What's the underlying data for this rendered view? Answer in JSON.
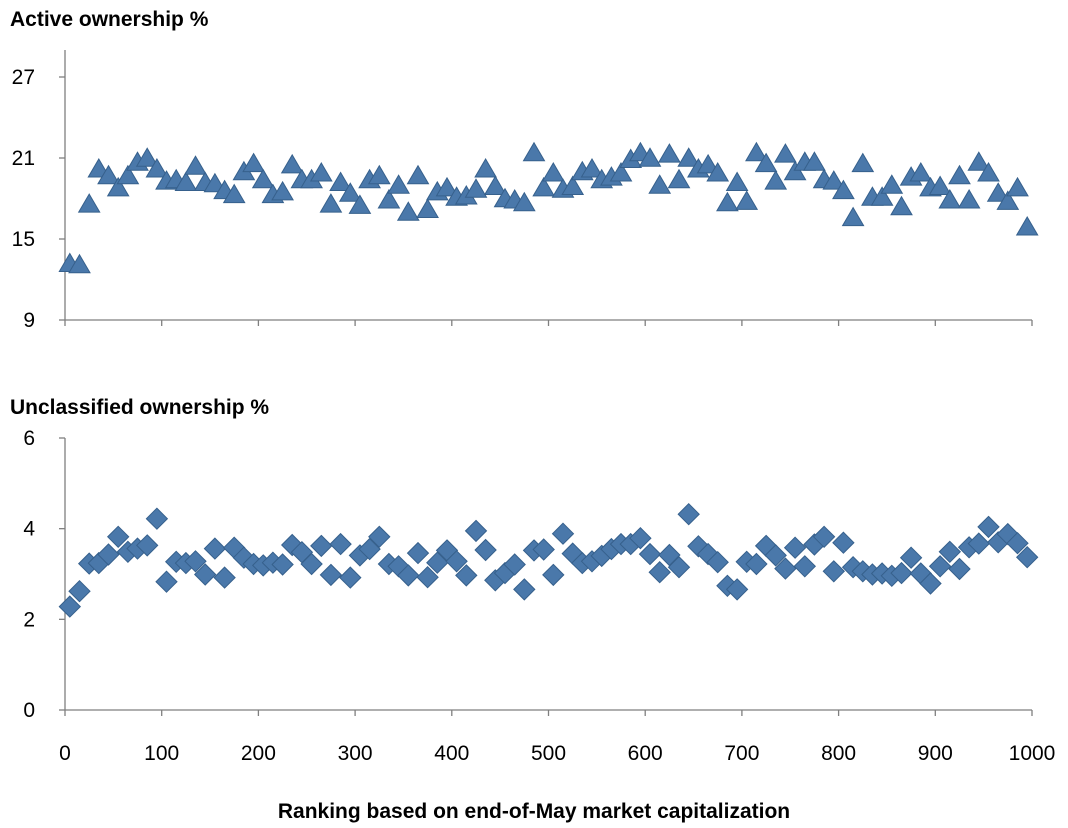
{
  "chart_data": [
    {
      "type": "scatter",
      "title": "Active ownership %",
      "marker": "triangle",
      "color": "#4a78aa",
      "ylim": [
        9,
        29
      ],
      "yticks": [
        "9",
        "15",
        "21",
        "27"
      ],
      "xlim": [
        0,
        1000
      ],
      "series": [
        {
          "x": [
            5,
            15,
            25,
            35,
            45,
            55,
            65,
            75,
            85,
            95,
            105,
            115,
            125,
            135,
            145,
            155,
            165,
            175,
            185,
            195,
            205,
            215,
            225,
            235,
            245,
            255,
            265,
            275,
            285,
            295,
            305,
            315,
            325,
            335,
            345,
            355,
            365,
            375,
            385,
            395,
            405,
            415,
            425,
            435,
            445,
            455,
            465,
            475,
            485,
            495,
            505,
            515,
            525,
            535,
            545,
            555,
            565,
            575,
            585,
            595,
            605,
            615,
            625,
            635,
            645,
            655,
            665,
            675,
            685,
            695,
            705,
            715,
            725,
            735,
            745,
            755,
            765,
            775,
            785,
            795,
            805,
            815,
            825,
            835,
            845,
            855,
            865,
            875,
            885,
            895,
            905,
            915,
            925,
            935,
            945,
            955,
            965,
            975,
            985,
            995
          ],
          "values": [
            13.1,
            13.0,
            17.5,
            20.1,
            19.6,
            18.7,
            19.6,
            20.6,
            20.9,
            20.1,
            19.2,
            19.3,
            19.1,
            20.3,
            19.1,
            19.0,
            18.5,
            18.2,
            19.9,
            20.5,
            19.3,
            18.2,
            18.4,
            20.4,
            19.3,
            19.3,
            19.8,
            17.5,
            19.1,
            18.3,
            17.4,
            19.3,
            19.6,
            17.8,
            18.9,
            16.9,
            19.6,
            17.1,
            18.4,
            18.7,
            18.0,
            18.1,
            18.6,
            20.1,
            18.8,
            17.9,
            17.8,
            17.6,
            21.3,
            18.7,
            19.8,
            18.6,
            18.8,
            19.9,
            20.1,
            19.3,
            19.5,
            19.8,
            20.8,
            21.3,
            20.9,
            18.9,
            21.2,
            19.3,
            20.9,
            20.1,
            20.4,
            19.8,
            17.6,
            19.1,
            17.7,
            21.3,
            20.5,
            19.2,
            21.2,
            19.9,
            20.6,
            20.6,
            19.3,
            19.2,
            18.5,
            16.5,
            20.5,
            18.0,
            18.0,
            18.9,
            17.3,
            19.5,
            19.8,
            18.7,
            18.8,
            17.8,
            19.6,
            17.8,
            20.6,
            19.8,
            18.3,
            17.7,
            18.7,
            15.8
          ]
        }
      ]
    },
    {
      "type": "scatter",
      "title": "Unclassified ownership %",
      "marker": "diamond",
      "color": "#4a78aa",
      "ylim": [
        0,
        6
      ],
      "yticks": [
        "0",
        "2",
        "4",
        "6"
      ],
      "xlim": [
        0,
        1000
      ],
      "xticks": [
        "0",
        "100",
        "200",
        "300",
        "400",
        "500",
        "600",
        "700",
        "800",
        "900",
        "1000"
      ],
      "xlabel": "Ranking based on end-of-May market capitalization",
      "series": [
        {
          "x": [
            5,
            15,
            25,
            35,
            45,
            55,
            65,
            75,
            85,
            95,
            105,
            115,
            125,
            135,
            145,
            155,
            165,
            175,
            185,
            195,
            205,
            215,
            225,
            235,
            245,
            255,
            265,
            275,
            285,
            295,
            305,
            315,
            325,
            335,
            345,
            355,
            365,
            375,
            385,
            395,
            405,
            415,
            425,
            435,
            445,
            455,
            465,
            475,
            485,
            495,
            505,
            515,
            525,
            535,
            545,
            555,
            565,
            575,
            585,
            595,
            605,
            615,
            625,
            635,
            645,
            655,
            665,
            675,
            685,
            695,
            705,
            715,
            725,
            735,
            745,
            755,
            765,
            775,
            785,
            795,
            805,
            815,
            825,
            835,
            845,
            855,
            865,
            875,
            885,
            895,
            905,
            915,
            925,
            935,
            945,
            955,
            965,
            975,
            985,
            995
          ],
          "values": [
            2.28,
            2.62,
            3.23,
            3.24,
            3.43,
            3.82,
            3.49,
            3.56,
            3.63,
            4.22,
            2.83,
            3.27,
            3.24,
            3.28,
            2.99,
            3.56,
            2.92,
            3.58,
            3.36,
            3.22,
            3.19,
            3.25,
            3.21,
            3.64,
            3.48,
            3.22,
            3.62,
            2.98,
            3.66,
            2.92,
            3.41,
            3.55,
            3.82,
            3.22,
            3.17,
            2.97,
            3.46,
            2.93,
            3.25,
            3.52,
            3.28,
            2.97,
            3.95,
            3.53,
            2.86,
            3.02,
            3.21,
            2.66,
            3.52,
            3.54,
            2.98,
            3.89,
            3.45,
            3.24,
            3.28,
            3.4,
            3.55,
            3.66,
            3.66,
            3.79,
            3.44,
            3.04,
            3.42,
            3.15,
            4.32,
            3.61,
            3.44,
            3.26,
            2.74,
            2.66,
            3.27,
            3.22,
            3.62,
            3.41,
            3.12,
            3.58,
            3.17,
            3.65,
            3.82,
            3.06,
            3.69,
            3.15,
            3.06,
            2.99,
            3.01,
            2.96,
            3.02,
            3.36,
            3.01,
            2.79,
            3.17,
            3.49,
            3.11,
            3.59,
            3.67,
            4.04,
            3.7,
            3.88,
            3.68,
            3.37
          ]
        }
      ]
    }
  ]
}
